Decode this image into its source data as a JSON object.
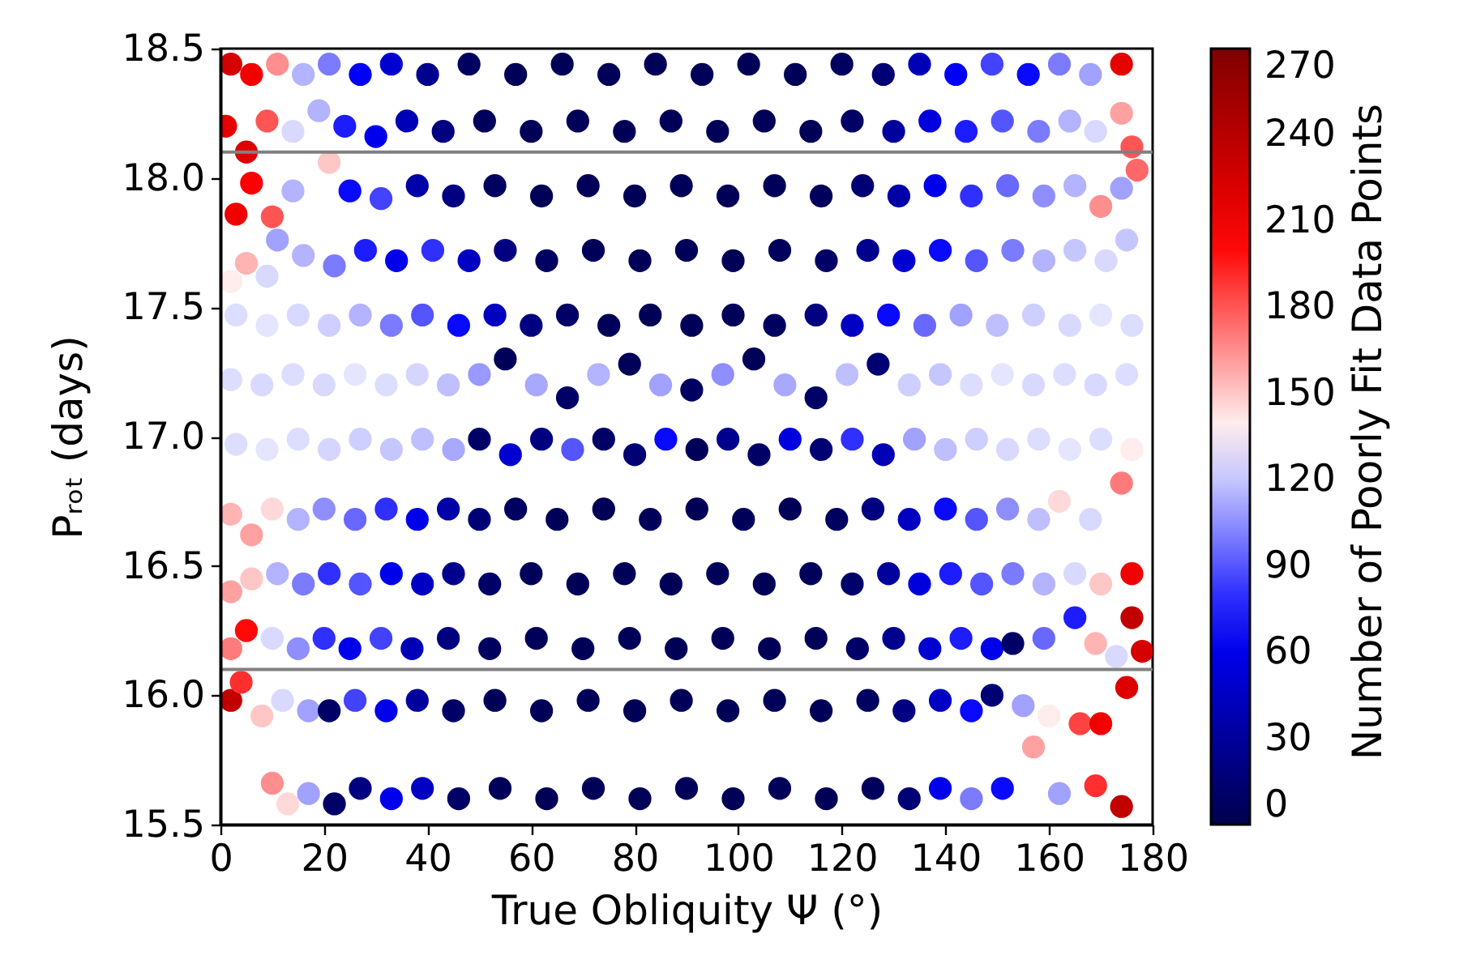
{
  "chart_data": {
    "type": "scatter",
    "marker": "circle",
    "xlabel": "True Obliquity Ψ (°)",
    "ylabel": "Pᵣₒₜ (days)",
    "clabel": "Number of Poorly Fit Data Points",
    "xlim": [
      0,
      180
    ],
    "xticks": [
      0,
      20,
      40,
      60,
      80,
      100,
      120,
      140,
      160,
      180
    ],
    "ylim": [
      15.5,
      18.5
    ],
    "yticks": [
      15.5,
      {
        "value": 16,
        "label": "16.0"
      },
      16.5,
      {
        "value": 17,
        "label": "17.0"
      },
      17.5,
      {
        "value": 18,
        "label": "18.0"
      },
      18.5
    ],
    "clim": [
      0,
      270
    ],
    "cticks": [
      0,
      30,
      60,
      90,
      120,
      150,
      180,
      210,
      240,
      270
    ],
    "ref_lines": [
      {
        "axis": "y",
        "value": 18.1,
        "color": "#808080"
      },
      {
        "axis": "y",
        "value": 16.1,
        "color": "#808080"
      }
    ],
    "x": [
      2,
      6,
      11,
      16,
      21,
      27,
      33,
      40,
      48,
      57,
      66,
      75,
      84,
      93,
      102,
      111,
      120,
      128,
      135,
      142,
      149,
      156,
      162,
      168,
      174,
      1,
      5,
      9,
      14,
      19,
      24,
      30,
      36,
      43,
      51,
      60,
      69,
      78,
      87,
      96,
      105,
      114,
      122,
      130,
      137,
      144,
      151,
      158,
      164,
      169,
      174,
      176,
      3,
      6,
      10,
      14,
      21,
      25,
      31,
      38,
      45,
      53,
      62,
      71,
      80,
      89,
      98,
      107,
      116,
      124,
      131,
      138,
      145,
      152,
      159,
      165,
      170,
      174,
      177,
      2,
      5,
      9,
      11,
      16,
      22,
      28,
      34,
      41,
      48,
      55,
      63,
      72,
      81,
      90,
      99,
      108,
      117,
      125,
      132,
      139,
      146,
      153,
      159,
      165,
      171,
      175,
      3,
      9,
      15,
      21,
      27,
      33,
      39,
      46,
      53,
      60,
      67,
      75,
      83,
      91,
      99,
      107,
      115,
      122,
      129,
      136,
      143,
      150,
      157,
      164,
      170,
      176,
      2,
      8,
      14,
      20,
      26,
      32,
      38,
      44,
      50,
      55,
      61,
      67,
      73,
      79,
      85,
      91,
      97,
      103,
      109,
      115,
      121,
      127,
      133,
      139,
      145,
      151,
      157,
      163,
      169,
      175,
      3,
      9,
      15,
      21,
      27,
      33,
      39,
      45,
      50,
      56,
      62,
      68,
      74,
      80,
      86,
      92,
      98,
      104,
      110,
      116,
      122,
      128,
      134,
      140,
      146,
      152,
      158,
      164,
      170,
      176,
      2,
      6,
      10,
      15,
      20,
      26,
      32,
      38,
      44,
      50,
      57,
      65,
      74,
      83,
      92,
      101,
      110,
      119,
      126,
      133,
      140,
      146,
      152,
      158,
      162,
      168,
      174,
      2,
      6,
      11,
      16,
      21,
      27,
      33,
      39,
      45,
      52,
      60,
      69,
      78,
      87,
      96,
      105,
      114,
      122,
      129,
      135,
      141,
      147,
      153,
      159,
      165,
      170,
      176,
      2,
      5,
      10,
      15,
      20,
      25,
      31,
      37,
      44,
      52,
      61,
      70,
      79,
      88,
      97,
      106,
      115,
      123,
      130,
      137,
      143,
      149,
      153,
      159,
      165,
      169,
      173,
      176,
      178,
      2,
      4,
      8,
      12,
      17,
      21,
      26,
      32,
      38,
      45,
      53,
      62,
      71,
      80,
      89,
      98,
      107,
      116,
      125,
      132,
      139,
      145,
      149,
      155,
      160,
      166,
      170,
      175,
      10,
      13,
      17,
      22,
      27,
      33,
      39,
      46,
      54,
      63,
      72,
      81,
      90,
      99,
      108,
      117,
      126,
      133,
      139,
      145,
      151,
      157,
      162,
      169,
      174
    ],
    "values": [
      18.44,
      18.4,
      18.44,
      18.4,
      18.44,
      18.4,
      18.44,
      18.4,
      18.44,
      18.4,
      18.44,
      18.4,
      18.44,
      18.4,
      18.44,
      18.4,
      18.44,
      18.4,
      18.44,
      18.4,
      18.44,
      18.4,
      18.44,
      18.4,
      18.44,
      18.2,
      18.1,
      18.22,
      18.18,
      18.26,
      18.2,
      18.16,
      18.22,
      18.18,
      18.22,
      18.18,
      18.22,
      18.18,
      18.22,
      18.18,
      18.22,
      18.18,
      18.22,
      18.18,
      18.22,
      18.18,
      18.22,
      18.18,
      18.22,
      18.18,
      18.25,
      18.12,
      17.86,
      17.98,
      17.85,
      17.95,
      18.06,
      17.95,
      17.92,
      17.97,
      17.93,
      17.97,
      17.93,
      17.97,
      17.93,
      17.97,
      17.93,
      17.97,
      17.93,
      17.97,
      17.93,
      17.97,
      17.93,
      17.97,
      17.93,
      17.97,
      17.89,
      17.96,
      18.03,
      17.6,
      17.67,
      17.62,
      17.76,
      17.7,
      17.66,
      17.72,
      17.68,
      17.72,
      17.68,
      17.72,
      17.68,
      17.72,
      17.68,
      17.72,
      17.68,
      17.72,
      17.68,
      17.72,
      17.68,
      17.72,
      17.68,
      17.72,
      17.68,
      17.72,
      17.68,
      17.76,
      17.47,
      17.43,
      17.47,
      17.43,
      17.47,
      17.43,
      17.47,
      17.43,
      17.47,
      17.43,
      17.47,
      17.43,
      17.47,
      17.43,
      17.47,
      17.43,
      17.47,
      17.43,
      17.47,
      17.43,
      17.47,
      17.43,
      17.47,
      17.43,
      17.47,
      17.43,
      17.22,
      17.2,
      17.24,
      17.2,
      17.24,
      17.2,
      17.24,
      17.2,
      17.24,
      17.3,
      17.2,
      17.15,
      17.24,
      17.28,
      17.2,
      17.18,
      17.24,
      17.3,
      17.2,
      17.15,
      17.24,
      17.28,
      17.2,
      17.24,
      17.2,
      17.24,
      17.2,
      17.24,
      17.2,
      17.24,
      16.97,
      16.95,
      16.99,
      16.95,
      16.99,
      16.95,
      16.99,
      16.95,
      16.99,
      16.93,
      16.99,
      16.95,
      16.99,
      16.93,
      16.99,
      16.95,
      16.99,
      16.93,
      16.99,
      16.95,
      16.99,
      16.93,
      16.99,
      16.95,
      16.99,
      16.95,
      16.99,
      16.95,
      16.99,
      16.95,
      16.7,
      16.62,
      16.72,
      16.68,
      16.72,
      16.68,
      16.72,
      16.68,
      16.72,
      16.68,
      16.72,
      16.68,
      16.72,
      16.68,
      16.72,
      16.68,
      16.72,
      16.68,
      16.72,
      16.68,
      16.72,
      16.68,
      16.72,
      16.68,
      16.75,
      16.68,
      16.82,
      16.4,
      16.45,
      16.47,
      16.43,
      16.47,
      16.43,
      16.47,
      16.43,
      16.47,
      16.43,
      16.47,
      16.43,
      16.47,
      16.43,
      16.47,
      16.43,
      16.47,
      16.43,
      16.47,
      16.43,
      16.47,
      16.43,
      16.47,
      16.43,
      16.47,
      16.43,
      16.47,
      16.18,
      16.25,
      16.22,
      16.18,
      16.22,
      16.18,
      16.22,
      16.18,
      16.22,
      16.18,
      16.22,
      16.18,
      16.22,
      16.18,
      16.22,
      16.18,
      16.22,
      16.18,
      16.22,
      16.18,
      16.22,
      16.18,
      16.2,
      16.22,
      16.3,
      16.2,
      16.15,
      16.3,
      16.17,
      15.98,
      16.05,
      15.92,
      15.98,
      15.94,
      15.94,
      15.98,
      15.94,
      15.98,
      15.94,
      15.98,
      15.94,
      15.98,
      15.94,
      15.98,
      15.94,
      15.98,
      15.94,
      15.98,
      15.94,
      15.98,
      15.94,
      16.0,
      15.96,
      15.92,
      15.89,
      15.89,
      16.03,
      15.66,
      15.58,
      15.62,
      15.58,
      15.64,
      15.6,
      15.64,
      15.6,
      15.64,
      15.6,
      15.64,
      15.6,
      15.64,
      15.6,
      15.64,
      15.6,
      15.64,
      15.6,
      15.64,
      15.6,
      15.64,
      15.8,
      15.62,
      15.65,
      15.57
    ],
    "cvalues": [
      225,
      210,
      165,
      115,
      100,
      65,
      50,
      25,
      8,
      5,
      4,
      5,
      4,
      5,
      4,
      5,
      7,
      15,
      40,
      65,
      85,
      70,
      100,
      110,
      215,
      215,
      220,
      180,
      125,
      115,
      75,
      60,
      40,
      20,
      6,
      4,
      5,
      4,
      5,
      4,
      5,
      4,
      10,
      30,
      55,
      75,
      90,
      100,
      115,
      125,
      160,
      180,
      210,
      205,
      180,
      115,
      150,
      70,
      85,
      35,
      20,
      8,
      4,
      5,
      4,
      5,
      4,
      5,
      6,
      15,
      35,
      60,
      80,
      95,
      105,
      115,
      165,
      110,
      175,
      140,
      155,
      125,
      110,
      115,
      100,
      75,
      60,
      80,
      45,
      20,
      8,
      5,
      4,
      5,
      4,
      6,
      10,
      25,
      50,
      70,
      90,
      100,
      115,
      120,
      125,
      120,
      126,
      128,
      125,
      122,
      115,
      100,
      90,
      70,
      45,
      20,
      10,
      5,
      4,
      5,
      5,
      8,
      20,
      45,
      70,
      95,
      110,
      118,
      122,
      125,
      128,
      126,
      126,
      125,
      126,
      125,
      128,
      126,
      124,
      118,
      108,
      5,
      112,
      10,
      115,
      5,
      110,
      8,
      105,
      5,
      112,
      10,
      118,
      15,
      122,
      120,
      126,
      128,
      125,
      126,
      125,
      126,
      126,
      128,
      126,
      124,
      122,
      120,
      118,
      112,
      10,
      50,
      20,
      90,
      10,
      15,
      70,
      5,
      25,
      10,
      55,
      15,
      80,
      40,
      110,
      118,
      122,
      125,
      126,
      128,
      126,
      140,
      155,
      160,
      145,
      115,
      105,
      95,
      80,
      60,
      35,
      15,
      8,
      5,
      4,
      5,
      4,
      5,
      4,
      8,
      20,
      45,
      70,
      90,
      105,
      118,
      145,
      125,
      170,
      160,
      150,
      115,
      100,
      80,
      90,
      60,
      45,
      25,
      10,
      5,
      4,
      5,
      4,
      5,
      4,
      6,
      12,
      30,
      55,
      75,
      90,
      100,
      115,
      125,
      150,
      210,
      170,
      200,
      125,
      105,
      80,
      60,
      85,
      40,
      20,
      8,
      5,
      4,
      5,
      4,
      5,
      4,
      5,
      10,
      25,
      50,
      75,
      60,
      10,
      95,
      75,
      155,
      125,
      235,
      225,
      235,
      190,
      150,
      125,
      110,
      10,
      85,
      60,
      30,
      10,
      5,
      4,
      5,
      4,
      5,
      4,
      5,
      4,
      8,
      20,
      45,
      70,
      15,
      110,
      140,
      185,
      210,
      220,
      165,
      145,
      110,
      10,
      20,
      60,
      45,
      10,
      5,
      4,
      5,
      4,
      5,
      4,
      5,
      4,
      6,
      15,
      60,
      100,
      70,
      160,
      110,
      190,
      235
    ]
  }
}
